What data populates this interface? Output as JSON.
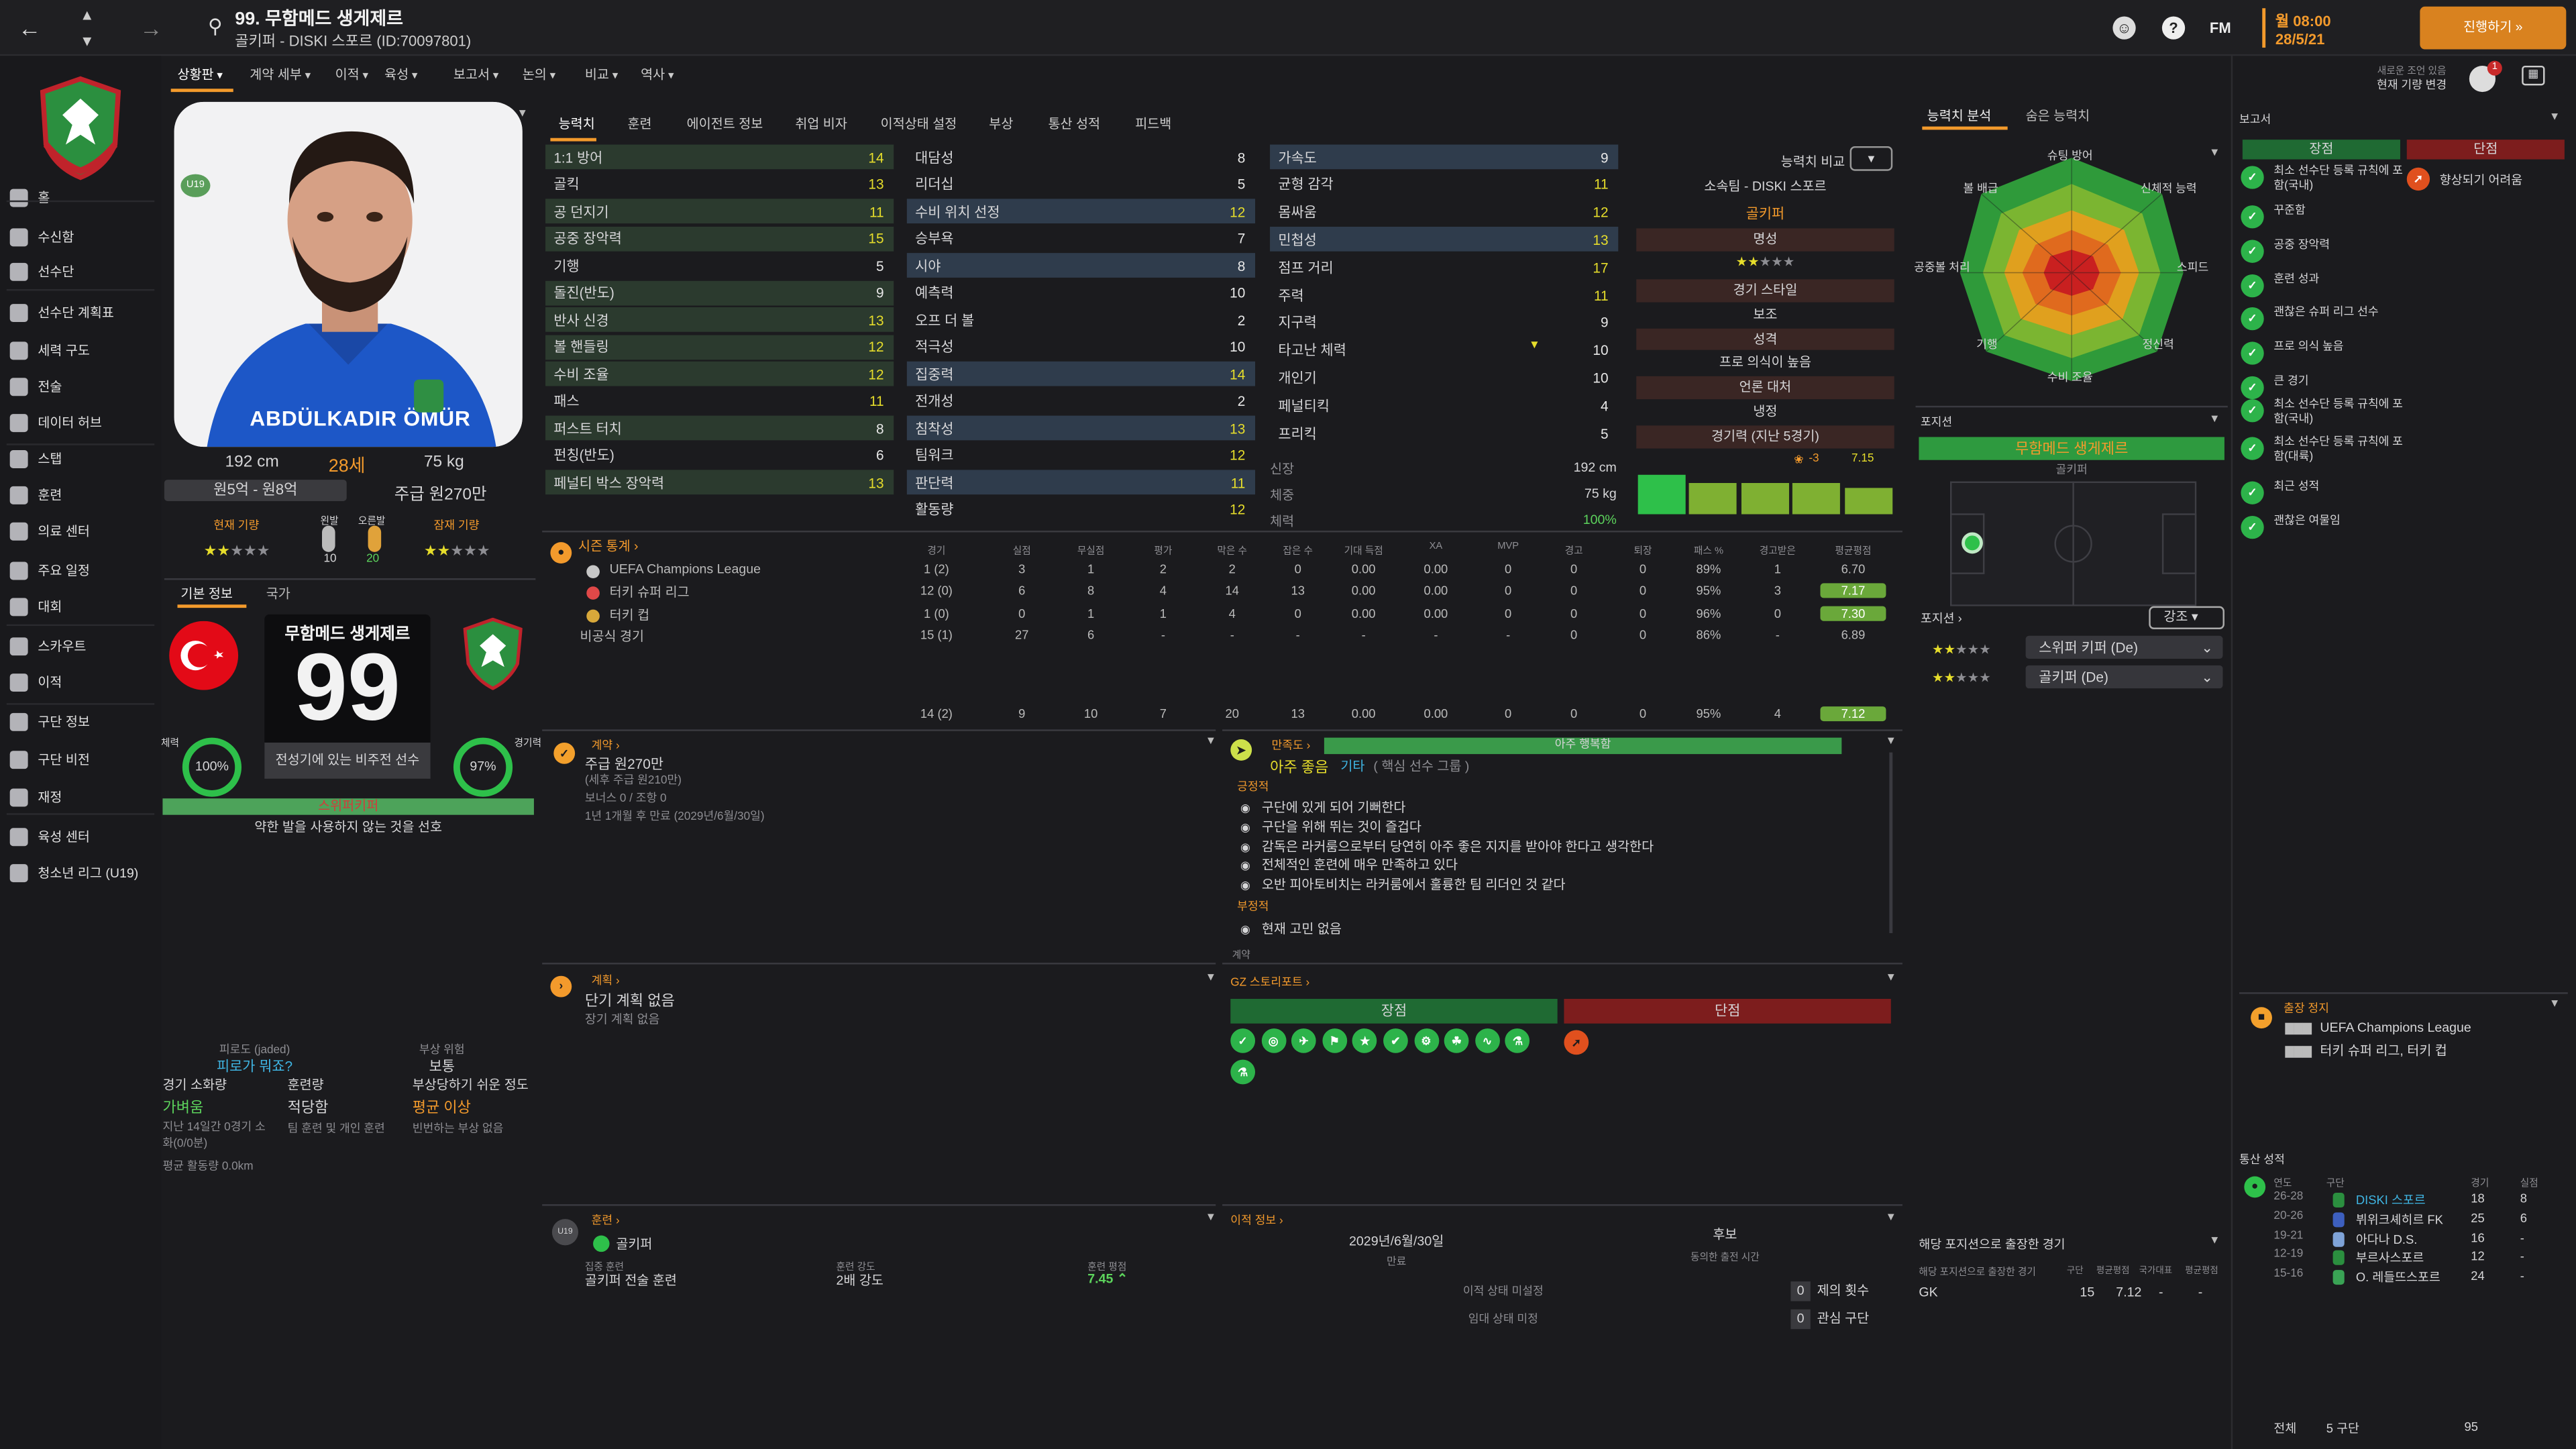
{
  "colors": {
    "accent": "#f39a2c",
    "green": "#5cd35c",
    "red": "#8c1f1f",
    "yellow": "#e6dd2b",
    "panel": "#1b1b1e"
  },
  "topbar": {
    "title": "99. 무함메드 생게제르",
    "subtitle": "골키퍼 - DISKI 스포르 (ID:70097801)",
    "brand": "FM",
    "date_time": "월 08:00",
    "date": "28/5/21",
    "continue_label": "진행하기 »",
    "notice_top": "새로운 조언 있음",
    "notice_bottom": "현재 기량 변경",
    "notif_count": "1"
  },
  "menu": [
    "상황판",
    "계약 세부",
    "이적",
    "육성",
    "보고서",
    "논의",
    "비교",
    "역사"
  ],
  "sidebar": [
    {
      "label": "홈",
      "icon": "home-icon"
    },
    {
      "label": "수신함",
      "icon": "inbox-icon"
    },
    {
      "label": "선수단",
      "icon": "squad-icon"
    },
    {
      "label": "선수단 계획표",
      "icon": "squad-plan-icon"
    },
    {
      "label": "세력 구도",
      "icon": "dynamics-icon"
    },
    {
      "label": "전술",
      "icon": "tactics-icon"
    },
    {
      "label": "데이터 허브",
      "icon": "data-hub-icon"
    },
    {
      "label": "스탭",
      "icon": "staff-icon"
    },
    {
      "label": "훈련",
      "icon": "training-icon"
    },
    {
      "label": "의료 센터",
      "icon": "medical-icon"
    },
    {
      "label": "주요 일정",
      "icon": "schedule-icon"
    },
    {
      "label": "대회",
      "icon": "trophy-icon"
    },
    {
      "label": "스카우트",
      "icon": "scout-icon"
    },
    {
      "label": "이적",
      "icon": "transfer-icon"
    },
    {
      "label": "구단 정보",
      "icon": "club-info-icon"
    },
    {
      "label": "구단 비전",
      "icon": "club-vision-icon"
    },
    {
      "label": "재정",
      "icon": "finance-icon"
    },
    {
      "label": "육성 센터",
      "icon": "development-icon"
    },
    {
      "label": "청소년 리그 (U19)",
      "icon": "youth-league-icon"
    }
  ],
  "player": {
    "shirt_name": "ABDÜLKADIR ÖMÜR",
    "height": "192 cm",
    "age": "28세",
    "weight": "75 kg",
    "value_range": "원5억 - 원8억",
    "wage": "주급 원270만",
    "current_ability_label": "현재 기량",
    "potential_label": "잠재 기량",
    "foot_left_label": "왼발",
    "foot_right_label": "오른발",
    "foot_left": "10",
    "foot_right": "20",
    "badge_u19": "U19",
    "current_stars": 2,
    "potential_stars": 2
  },
  "profile_tabs": [
    "기본 정보",
    "국가"
  ],
  "card": {
    "name": "무함메드 생게제르",
    "number": "99",
    "desc": "전성기에 있는 비주전 선수",
    "fitness_label": "체력",
    "fitness": "100%",
    "sharpness_label": "경기력",
    "sharpness": "97%",
    "style": "스위퍼키퍼",
    "style_desc": "약한 발을 사용하지 않는 것을 선호"
  },
  "condition": {
    "jaded_label": "피로도 (jaded)",
    "jaded": "피로가 뭐죠?",
    "injury_label": "부상 위험",
    "injury": "보통",
    "load_label": "경기 소화량",
    "load": "가벼움",
    "training_label": "훈련량",
    "training": "적당함",
    "prone_label": "부상당하기 쉬운 정도",
    "prone": "평균 이상",
    "load_desc": "지난 14일간 0경기 소화(0/0분)",
    "training_desc": "팀 훈련 및 개인 훈련",
    "prone_desc": "빈번하는 부상 없음",
    "distance": "평균 활동량 0.0km"
  },
  "attr_tabs": [
    "능력치",
    "훈련",
    "에이전트 정보",
    "취업 비자",
    "이적상태 설정",
    "부상",
    "통산 성적",
    "피드백"
  ],
  "attrs_col1": [
    {
      "n": "1:1 방어",
      "v": "14",
      "h": 1
    },
    {
      "n": "골킥",
      "v": "13",
      "h": 0
    },
    {
      "n": "공 던지기",
      "v": "11",
      "h": 1
    },
    {
      "n": "공중 장악력",
      "v": "15",
      "h": 1
    },
    {
      "n": "기행",
      "v": "5",
      "h": 0
    },
    {
      "n": "돌진(반도)",
      "v": "9",
      "h": 1
    },
    {
      "n": "반사 신경",
      "v": "13",
      "h": 1
    },
    {
      "n": "볼 핸들링",
      "v": "12",
      "h": 1
    },
    {
      "n": "수비 조율",
      "v": "12",
      "h": 1
    },
    {
      "n": "패스",
      "v": "11",
      "h": 0
    },
    {
      "n": "퍼스트 터치",
      "v": "8",
      "h": 1
    },
    {
      "n": "펀칭(반도)",
      "v": "6",
      "h": 0
    },
    {
      "n": "페널티 박스 장악력",
      "v": "13",
      "h": 1
    }
  ],
  "attrs_col2": [
    {
      "n": "대담성",
      "v": "8",
      "h": 0
    },
    {
      "n": "리더십",
      "v": "5",
      "h": 0
    },
    {
      "n": "수비 위치 선정",
      "v": "12",
      "h": 1
    },
    {
      "n": "승부욕",
      "v": "7",
      "h": 0
    },
    {
      "n": "시야",
      "v": "8",
      "h": 1
    },
    {
      "n": "예측력",
      "v": "10",
      "h": 0
    },
    {
      "n": "오프 더 볼",
      "v": "2",
      "h": 0
    },
    {
      "n": "적극성",
      "v": "10",
      "h": 0
    },
    {
      "n": "집중력",
      "v": "14",
      "h": 1
    },
    {
      "n": "전개성",
      "v": "2",
      "h": 0
    },
    {
      "n": "침착성",
      "v": "13",
      "h": 1
    },
    {
      "n": "팀워크",
      "v": "12",
      "h": 0
    },
    {
      "n": "판단력",
      "v": "11",
      "h": 1
    },
    {
      "n": "활동량",
      "v": "12",
      "h": 0
    }
  ],
  "attrs_col3": [
    {
      "n": "가속도",
      "v": "9",
      "h": 1
    },
    {
      "n": "균형 감각",
      "v": "11",
      "h": 0
    },
    {
      "n": "몸싸움",
      "v": "12",
      "h": 0
    },
    {
      "n": "민첩성",
      "v": "13",
      "h": 1
    },
    {
      "n": "점프 거리",
      "v": "17",
      "h": 0
    },
    {
      "n": "주력",
      "v": "11",
      "h": 0
    },
    {
      "n": "지구력",
      "v": "9",
      "h": 0
    },
    {
      "n": "타고난 체력",
      "v": "10",
      "h": 0
    },
    {
      "n": "개인기",
      "v": "10",
      "h": 0
    },
    {
      "n": "페널티킥",
      "v": "4",
      "h": 0
    },
    {
      "n": "프리킥",
      "v": "5",
      "h": 0
    }
  ],
  "phys": {
    "height_label": "신장",
    "height": "192 cm",
    "weight_label": "체중",
    "weight": "75 kg",
    "fitness_label": "체력",
    "fitness": "100%"
  },
  "info_col": {
    "compare": "능력치 비교",
    "club": "소속팀 - DISKI 스포르",
    "position": "골키퍼",
    "rep_label": "명성",
    "style_label": "경기 스타일",
    "style": "보조",
    "personality_label": "성격",
    "personality": "프로 의식이 높음",
    "media_label": "언론 대처",
    "media": "냉정",
    "form_label": "경기력 (지난 5경기)",
    "form_delta": "-3",
    "form_rating": "7.15",
    "form_bars": [
      0.9,
      0.7,
      0.7,
      0.7,
      0.6
    ]
  },
  "season_stats": {
    "title": "시즌 통계",
    "headers": [
      "경기",
      "실점",
      "무실점",
      "평가",
      "막은 수",
      "잡은 수",
      "기대 득점",
      "XA",
      "MVP",
      "경고",
      "퇴장",
      "패스 %",
      "경고받은",
      "평균평점"
    ],
    "rows": [
      {
        "comp": "UEFA Champions League",
        "vals": [
          "1 (2)",
          "3",
          "1",
          "2",
          "2",
          "0",
          "0.00",
          "0.00",
          "0",
          "0",
          "0",
          "89%",
          "1",
          "6.70"
        ]
      },
      {
        "comp": "터키 슈퍼 리그",
        "vals": [
          "12 (0)",
          "6",
          "8",
          "4",
          "14",
          "13",
          "0.00",
          "0.00",
          "0",
          "0",
          "0",
          "95%",
          "3",
          "7.17"
        ]
      },
      {
        "comp": "터키 컵",
        "vals": [
          "1 (0)",
          "0",
          "1",
          "1",
          "4",
          "0",
          "0.00",
          "0.00",
          "0",
          "0",
          "0",
          "96%",
          "0",
          "7.30"
        ]
      },
      {
        "comp": "비공식 경기",
        "vals": [
          "15 (1)",
          "27",
          "6",
          "-",
          "-",
          "-",
          "-",
          "-",
          "-",
          "0",
          "0",
          "86%",
          "-",
          "6.89"
        ]
      }
    ],
    "total": [
      "14 (2)",
      "9",
      "10",
      "7",
      "20",
      "13",
      "0.00",
      "0.00",
      "0",
      "0",
      "0",
      "95%",
      "4",
      "7.12"
    ]
  },
  "contract": {
    "title": "계약",
    "wage": "주급 원270만",
    "wage_sub": "(세후 주급 원210만)",
    "bonus": "보너스 0 / 조항 0",
    "expiry": "1년 1개월 후 만료 (2029년/6월/30일)"
  },
  "happiness": {
    "title": "만족도",
    "bar_label": "아주 행복함",
    "level": "아주 좋음",
    "group_a": "기타",
    "group_b": "( 핵심 선수 그룹 )",
    "pos_label": "긍정적",
    "positives": [
      "구단에 있게 되어 기뻐한다",
      "구단을 위해 뛰는 것이 즐겁다",
      "감독은 라커룸으로부터 당연히 아주 좋은 지지를 받아야 한다고 생각한다",
      "전체적인 훈련에 매우 만족하고 있다",
      "오반 피아토비치는 라커룸에서 훌륭한 팀 리더인 것 같다"
    ],
    "neg_label": "부정적",
    "negatives": [
      "현재 고민 없음"
    ],
    "more": "계약"
  },
  "plans": {
    "title": "계획",
    "line1": "단기 계획 없음",
    "line2": "장기 계획 없음"
  },
  "gz": {
    "title": "GZ 스토리포트",
    "strengths_label": "장점",
    "weak_label": "단점"
  },
  "training_panel": {
    "title": "훈련",
    "position": "골키퍼",
    "focus_label": "집중 훈련",
    "focus": "골키퍼 전술 훈련",
    "intensity_label": "훈련 강도",
    "intensity": "2배 강도",
    "rating_label": "훈련 평점",
    "rating": "7.45"
  },
  "transfer": {
    "title": "이적 정보",
    "expiry": "2029년/6월/30일",
    "expiry_label": "만료",
    "role": "후보",
    "role_label": "동의한 출전 시간",
    "status": "이적 상태 미설정",
    "loan": "임대 상태 미정",
    "offers_n": "0",
    "offers": "제의 횟수",
    "interest_n": "0",
    "interest": "관심 구단"
  },
  "ability": {
    "tabs": [
      "능력치 분석",
      "숨은 능력치"
    ],
    "labels": [
      "슈팅 방어",
      "신체적 능력",
      "스피드",
      "정신력",
      "수비 조율",
      "기행",
      "공중볼 처리",
      "볼 배급"
    ]
  },
  "positions": {
    "title": "포지션",
    "current": "무함메드 생게제르",
    "current_pos": "골키퍼",
    "roles_title": "포지션",
    "highlight": "강조",
    "role1": "스위퍼 키퍼 (De)",
    "role2": "골키퍼 (De)"
  },
  "pos_games": {
    "title": "해당 포지션으로 출장한 경기",
    "col_label": "해당 포지션으로 출장한 경기",
    "headers": [
      "구단",
      "평균평점",
      "국가대표",
      "평균평점"
    ],
    "pos": "GK",
    "vals": [
      "15",
      "7.12",
      "-",
      "-"
    ]
  },
  "report": {
    "title": "보고서",
    "strengths_label": "장점",
    "weak_label": "단점",
    "strengths": [
      "최소 선수단 등록 규칙에 포함(국내)",
      "꾸준함",
      "공중 장악력",
      "훈련 성과",
      "괜찮은 슈퍼 리그 선수",
      "프로 의식 높음",
      "큰 경기",
      "최소 선수단 등록 규칙에 포함(국내)",
      "최소 선수단 등록 규칙에 포함(대륙)",
      "최근 성적",
      "괜찮은 여물임"
    ],
    "weaknesses": [
      "향상되기 어려움"
    ]
  },
  "suspension": {
    "title": "출장 정지",
    "rows": [
      "UEFA Champions League",
      "터키 슈퍼 리그, 터키 컵"
    ]
  },
  "career": {
    "title": "통산 성적",
    "headers": [
      "연도",
      "구단",
      "경기",
      "실점"
    ],
    "rows": [
      {
        "y": "26-28",
        "club": "DISKI 스포르",
        "g": "18",
        "c": "8"
      },
      {
        "y": "20-26",
        "club": "뷔위크셰히르 FK",
        "g": "25",
        "c": "6"
      },
      {
        "y": "19-21",
        "club": "아다나 D.S.",
        "g": "16",
        "c": "-"
      },
      {
        "y": "12-19",
        "club": "부르사스포르",
        "g": "12",
        "c": "-"
      },
      {
        "y": "15-16",
        "club": "O. 레들뜨스포르",
        "g": "24",
        "c": "-"
      }
    ],
    "total_label": "전체",
    "total_clubs": "5 구단",
    "total_games": "95"
  }
}
